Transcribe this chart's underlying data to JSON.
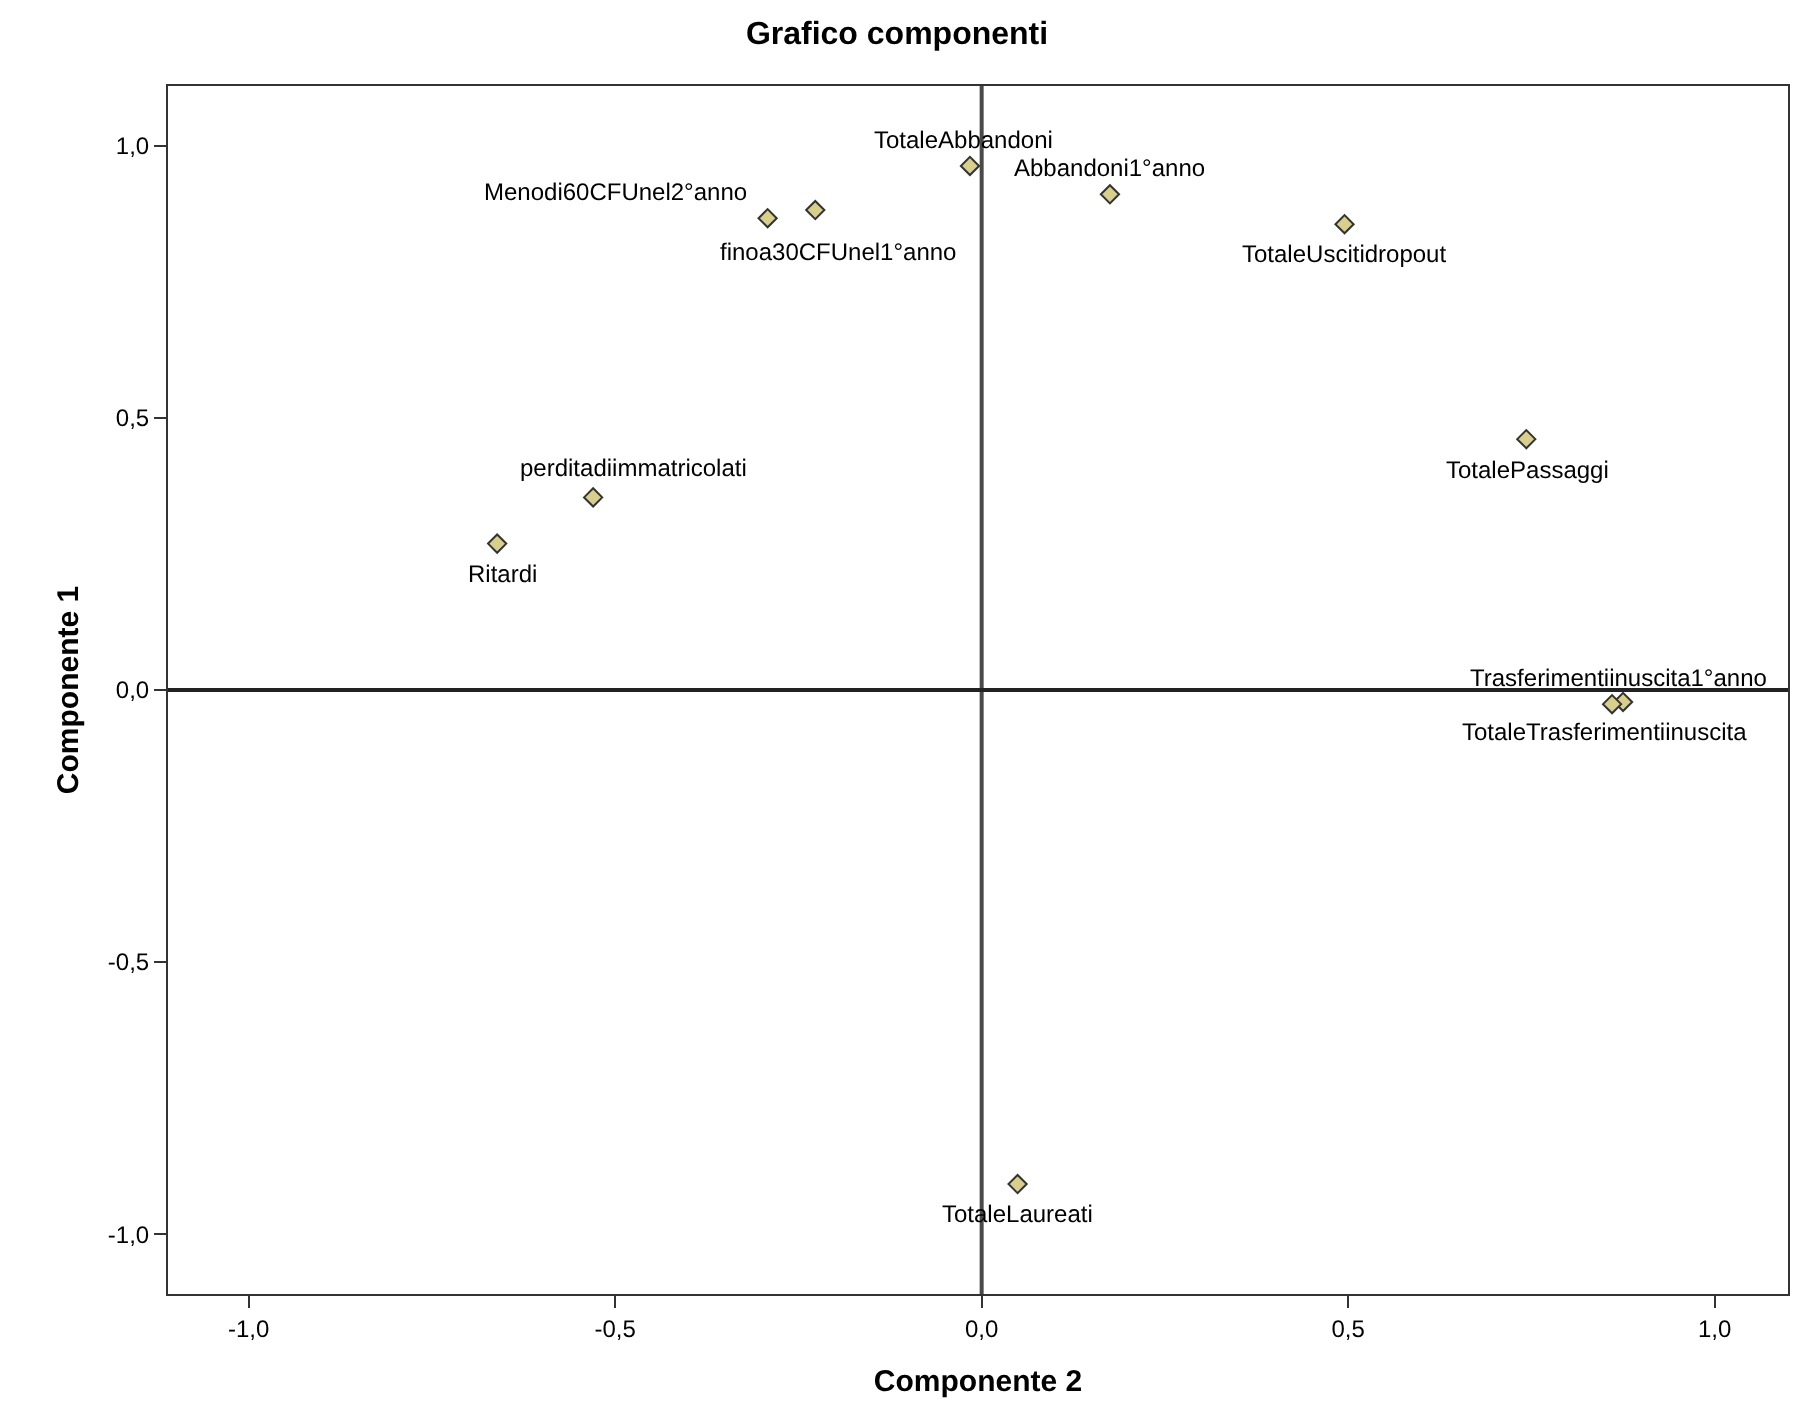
{
  "chart_data": {
    "type": "scatter",
    "title": "Grafico componenti",
    "xlabel": "Componente 2",
    "ylabel": "Componente 1",
    "x": [
      -0.016,
      0.175,
      -0.292,
      -0.227,
      0.495,
      0.743,
      -0.53,
      -0.661,
      0.875,
      0.86,
      0.049
    ],
    "values": [
      0.963,
      0.911,
      0.867,
      0.882,
      0.856,
      0.461,
      0.354,
      0.269,
      -0.022,
      -0.026,
      -0.908
    ],
    "color": "#d8cf8c",
    "marker": "diamond",
    "grid": false,
    "xlim": [
      -1.11,
      1.1
    ],
    "ylim": [
      -1.11,
      1.11
    ],
    "xticks": [
      {
        "value": -1,
        "label": "-1,0"
      },
      {
        "value": -0.5,
        "label": "-0,5"
      },
      {
        "value": 0,
        "label": "0,0"
      },
      {
        "value": 0.5,
        "label": "0,5"
      },
      {
        "value": 1,
        "label": "1,0"
      }
    ],
    "yticks": [
      {
        "value": -1,
        "label": "-1,0"
      },
      {
        "value": -0.5,
        "label": "-0,5"
      },
      {
        "value": 0,
        "label": "0,0"
      },
      {
        "value": 0.5,
        "label": "0,5"
      },
      {
        "value": 1,
        "label": "1,0"
      }
    ],
    "ref_lines": [
      {
        "axis": "x",
        "value": 0,
        "color": "#4a4a4a"
      },
      {
        "axis": "y",
        "value": 0,
        "color": "#222222"
      }
    ],
    "annotations": [
      {
        "text": "TotaleAbbandoni",
        "x": -0.016,
        "y": 0.963
      },
      {
        "text": "Abbandoni1°anno",
        "x": 0.175,
        "y": 0.911
      },
      {
        "text": "Menodi60CFUnel2°anno",
        "x": -0.292,
        "y": 0.867
      },
      {
        "text": "finoa30CFUnel1°anno",
        "x": -0.227,
        "y": 0.882
      },
      {
        "text": "TotaleUscitidropout",
        "x": 0.495,
        "y": 0.856
      },
      {
        "text": "TotalePassaggi",
        "x": 0.743,
        "y": 0.461
      },
      {
        "text": "perditadiimmatricolati",
        "x": -0.53,
        "y": 0.354
      },
      {
        "text": "Ritardi",
        "x": -0.661,
        "y": 0.269
      },
      {
        "text": "Trasferimentiinuscita1°anno",
        "x": 0.875,
        "y": -0.022
      },
      {
        "text": "TotaleTrasferimentiinuscita",
        "x": 0.86,
        "y": -0.026
      },
      {
        "text": "TotaleLaureati",
        "x": 0.049,
        "y": -0.908
      }
    ]
  }
}
